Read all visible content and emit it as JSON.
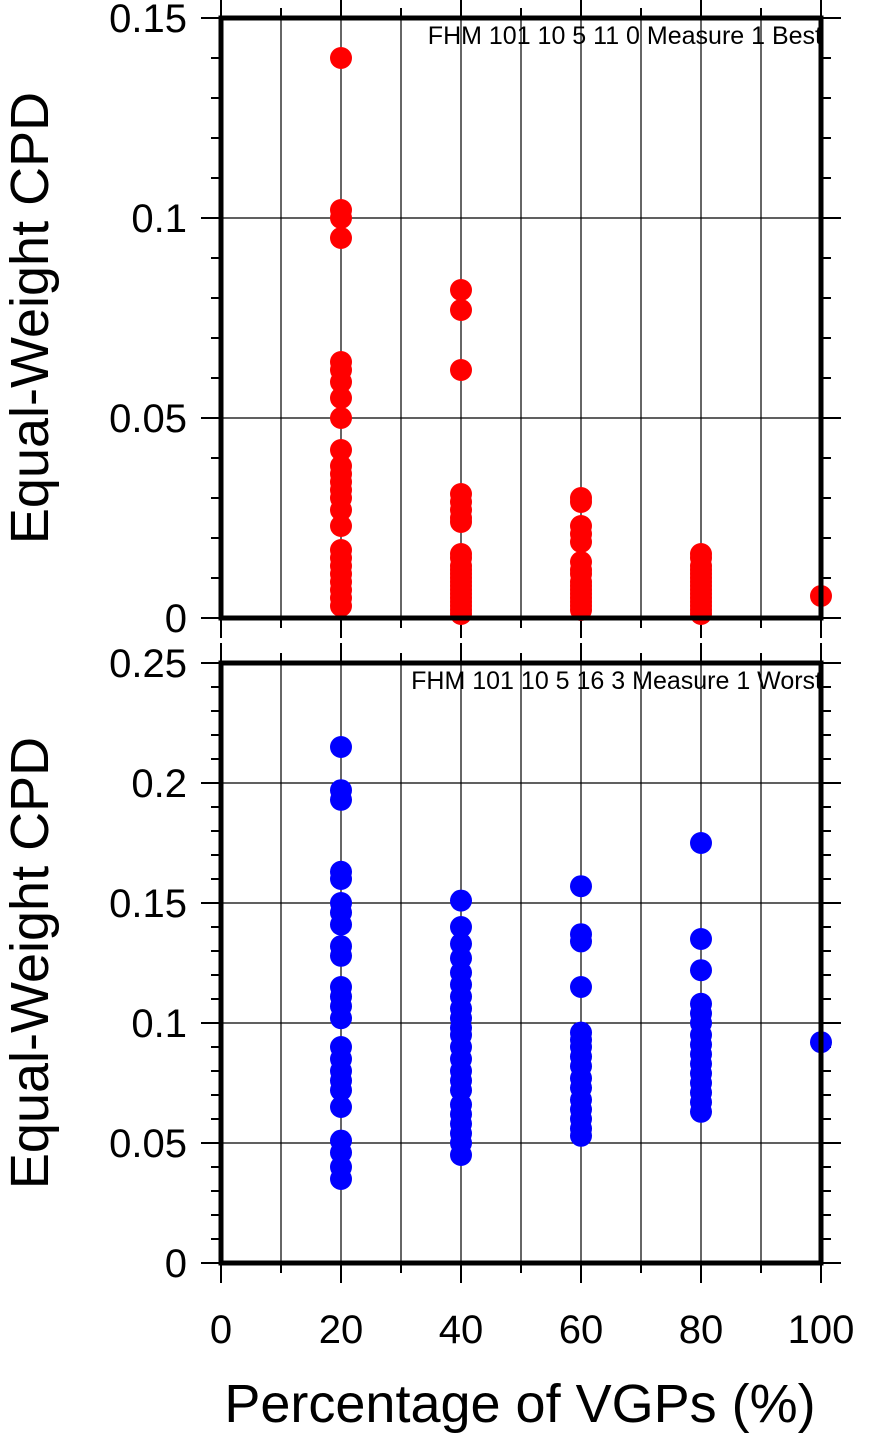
{
  "chart_data": [
    {
      "type": "scatter",
      "annotation": "FHM 101 10 5 11 0 Measure 1 Best",
      "ylabel": "Equal-Weight CPD",
      "xlim": [
        0,
        100
      ],
      "ylim": [
        0,
        0.15
      ],
      "y_ticks": [
        "0",
        "0.05",
        "0.1",
        "0.15"
      ],
      "grid": true,
      "color": "#ff0000",
      "points": [
        {
          "x": 20,
          "y": [
            0.14,
            0.102,
            0.1,
            0.095,
            0.064,
            0.062,
            0.059,
            0.055,
            0.05,
            0.042,
            0.038,
            0.036,
            0.034,
            0.032,
            0.03,
            0.027,
            0.023,
            0.017,
            0.015,
            0.013,
            0.011,
            0.009,
            0.007,
            0.005,
            0.003
          ]
        },
        {
          "x": 40,
          "y": [
            0.082,
            0.077,
            0.062,
            0.031,
            0.029,
            0.027,
            0.025,
            0.024,
            0.016,
            0.015,
            0.013,
            0.012,
            0.011,
            0.01,
            0.009,
            0.008,
            0.007,
            0.006,
            0.005,
            0.004,
            0.003,
            0.002,
            0.001
          ]
        },
        {
          "x": 60,
          "y": [
            0.03,
            0.029,
            0.023,
            0.021,
            0.019,
            0.014,
            0.012,
            0.011,
            0.009,
            0.008,
            0.007,
            0.006,
            0.005,
            0.004,
            0.003,
            0.002
          ]
        },
        {
          "x": 80,
          "y": [
            0.016,
            0.015,
            0.013,
            0.012,
            0.011,
            0.01,
            0.009,
            0.008,
            0.007,
            0.006,
            0.005,
            0.004,
            0.003,
            0.002,
            0.001
          ]
        },
        {
          "x": 100,
          "y": [
            0.0055
          ]
        }
      ]
    },
    {
      "type": "scatter",
      "annotation": "FHM 101 10 5 16 3 Measure 1 Worst",
      "ylabel": "Equal-Weight CPD",
      "xlabel": "Percentage of VGPs (%)",
      "xlim": [
        0,
        100
      ],
      "ylim": [
        0,
        0.25
      ],
      "x_ticks": [
        "0",
        "20",
        "40",
        "60",
        "80",
        "100"
      ],
      "y_ticks": [
        "0",
        "0.05",
        "0.1",
        "0.15",
        "0.2",
        "0.25"
      ],
      "grid": true,
      "color": "#0000ff",
      "points": [
        {
          "x": 20,
          "y": [
            0.215,
            0.197,
            0.193,
            0.163,
            0.16,
            0.15,
            0.146,
            0.141,
            0.132,
            0.128,
            0.115,
            0.111,
            0.107,
            0.102,
            0.09,
            0.085,
            0.08,
            0.076,
            0.072,
            0.065,
            0.051,
            0.046,
            0.04,
            0.035
          ]
        },
        {
          "x": 40,
          "y": [
            0.151,
            0.14,
            0.133,
            0.127,
            0.121,
            0.116,
            0.111,
            0.106,
            0.102,
            0.098,
            0.095,
            0.09,
            0.085,
            0.08,
            0.076,
            0.072,
            0.066,
            0.062,
            0.058,
            0.054,
            0.05,
            0.045
          ]
        },
        {
          "x": 60,
          "y": [
            0.157,
            0.137,
            0.134,
            0.115,
            0.096,
            0.093,
            0.09,
            0.086,
            0.082,
            0.077,
            0.073,
            0.068,
            0.064,
            0.06,
            0.056,
            0.053
          ]
        },
        {
          "x": 80,
          "y": [
            0.175,
            0.135,
            0.122,
            0.108,
            0.104,
            0.1,
            0.095,
            0.091,
            0.087,
            0.083,
            0.079,
            0.075,
            0.071,
            0.067,
            0.063
          ]
        },
        {
          "x": 100,
          "y": [
            0.092
          ]
        }
      ]
    }
  ]
}
